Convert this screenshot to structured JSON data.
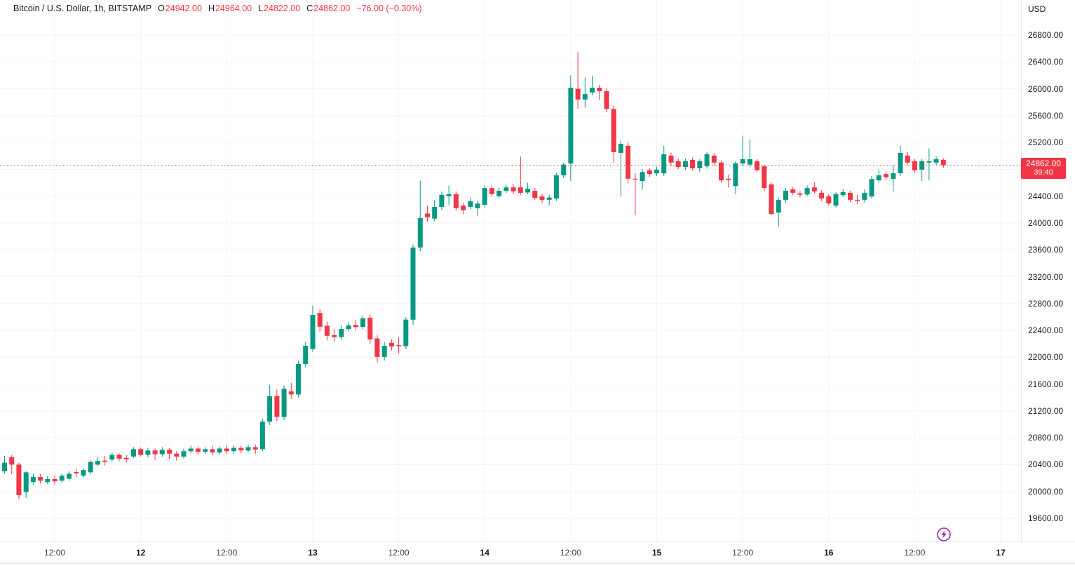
{
  "header": {
    "symbol_title": "Bitcoin / U.S. Dollar, 1h, BITSTAMP",
    "ohlc": {
      "o_label": "O",
      "o": "24942.00",
      "h_label": "H",
      "h": "24964.00",
      "l_label": "L",
      "l": "24822.00",
      "c_label": "C",
      "c": "24862.00",
      "change": "−76.00 (−0.30%)"
    }
  },
  "price_axis_unit": "USD",
  "colors": {
    "up": "#089981",
    "down": "#f23645",
    "grid": "#f0f3fa",
    "text": "#131722",
    "price_label_bg": "#f23645",
    "lightning_purple": "#9c27b0"
  },
  "chart_data": {
    "type": "candlestick",
    "title": "Bitcoin / U.S. Dollar",
    "interval": "1h",
    "exchange": "BITSTAMP",
    "currency": "USD",
    "last_bar": {
      "open": 24942,
      "high": 24964,
      "low": 24822,
      "close": 24862,
      "change": "−76.00 (−0.30%)"
    },
    "price_line": {
      "price": 24862,
      "label": "24862.00",
      "countdown": "39:40"
    },
    "y_ticks": [
      26800,
      26400,
      26000,
      25600,
      25200,
      24400,
      24000,
      23600,
      23200,
      22800,
      22400,
      22000,
      21600,
      21200,
      20800,
      20400,
      20000,
      19600
    ],
    "grid_prices": [
      26800,
      26400,
      26000,
      25600,
      25200,
      24800,
      24400,
      24000,
      23600,
      23200,
      22800,
      22400,
      22000,
      21600,
      21200,
      20800,
      20400,
      20000,
      19600
    ],
    "ylim": [
      19220,
      27330
    ],
    "x_ticks": [
      {
        "label": "12:00",
        "hour": 7,
        "major": false
      },
      {
        "label": "12",
        "hour": 19,
        "major": true
      },
      {
        "label": "12:00",
        "hour": 31,
        "major": false
      },
      {
        "label": "13",
        "hour": 43,
        "major": true
      },
      {
        "label": "12:00",
        "hour": 55,
        "major": false
      },
      {
        "label": "14",
        "hour": 67,
        "major": true
      },
      {
        "label": "12:00",
        "hour": 79,
        "major": false
      },
      {
        "label": "15",
        "hour": 91,
        "major": true
      },
      {
        "label": "12:00",
        "hour": 103,
        "major": false
      },
      {
        "label": "16",
        "hour": 115,
        "major": true
      },
      {
        "label": "12:00",
        "hour": 127,
        "major": false
      },
      {
        "label": "17",
        "hour": 139,
        "major": true
      }
    ],
    "candles_format": [
      "open",
      "high",
      "low",
      "close"
    ],
    "candles": [
      [
        20300,
        20530,
        20270,
        20430
      ],
      [
        20510,
        20545,
        20260,
        20400
      ],
      [
        20400,
        20430,
        19885,
        19945
      ],
      [
        19990,
        20300,
        19905,
        20285
      ],
      [
        20140,
        20260,
        20100,
        20215
      ],
      [
        20215,
        20260,
        20120,
        20160
      ],
      [
        20140,
        20230,
        20110,
        20185
      ],
      [
        20185,
        20240,
        20105,
        20150
      ],
      [
        20160,
        20270,
        20130,
        20235
      ],
      [
        20190,
        20300,
        20160,
        20265
      ],
      [
        20290,
        20345,
        20210,
        20270
      ],
      [
        20235,
        20350,
        20200,
        20320
      ],
      [
        20285,
        20470,
        20260,
        20440
      ],
      [
        20400,
        20520,
        20380,
        20455
      ],
      [
        20460,
        20530,
        20390,
        20440
      ],
      [
        20475,
        20580,
        20440,
        20545
      ],
      [
        20545,
        20565,
        20450,
        20490
      ],
      [
        20500,
        20540,
        20430,
        20480
      ],
      [
        20520,
        20660,
        20500,
        20630
      ],
      [
        20630,
        20655,
        20520,
        20545
      ],
      [
        20545,
        20650,
        20510,
        20610
      ],
      [
        20610,
        20640,
        20470,
        20555
      ],
      [
        20555,
        20660,
        20520,
        20620
      ],
      [
        20620,
        20650,
        20480,
        20565
      ],
      [
        20565,
        20600,
        20460,
        20520
      ],
      [
        20520,
        20640,
        20490,
        20600
      ],
      [
        20600,
        20680,
        20570,
        20640
      ],
      [
        20640,
        20670,
        20550,
        20590
      ],
      [
        20590,
        20660,
        20560,
        20630
      ],
      [
        20630,
        20680,
        20540,
        20580
      ],
      [
        20580,
        20670,
        20550,
        20640
      ],
      [
        20640,
        20690,
        20560,
        20600
      ],
      [
        20600,
        20690,
        20565,
        20650
      ],
      [
        20650,
        20680,
        20570,
        20610
      ],
      [
        20610,
        20700,
        20580,
        20660
      ],
      [
        20660,
        20700,
        20560,
        20625
      ],
      [
        20630,
        21080,
        20600,
        21040
      ],
      [
        21040,
        21590,
        20990,
        21420
      ],
      [
        21420,
        21520,
        21050,
        21110
      ],
      [
        21110,
        21580,
        21060,
        21530
      ],
      [
        21490,
        21620,
        21380,
        21445
      ],
      [
        21445,
        21950,
        21400,
        21900
      ],
      [
        21900,
        22230,
        21850,
        22170
      ],
      [
        22120,
        22770,
        22080,
        22630
      ],
      [
        22660,
        22720,
        22380,
        22455
      ],
      [
        22470,
        22530,
        22250,
        22320
      ],
      [
        22330,
        22420,
        22230,
        22300
      ],
      [
        22300,
        22470,
        22260,
        22420
      ],
      [
        22420,
        22520,
        22390,
        22475
      ],
      [
        22480,
        22560,
        22400,
        22450
      ],
      [
        22450,
        22620,
        22420,
        22580
      ],
      [
        22590,
        22640,
        22200,
        22265
      ],
      [
        22280,
        22330,
        21920,
        22005
      ],
      [
        22005,
        22230,
        21950,
        22170
      ],
      [
        22215,
        22270,
        22100,
        22160
      ],
      [
        22180,
        22300,
        22060,
        22165
      ],
      [
        22165,
        22600,
        22120,
        22560
      ],
      [
        22560,
        23680,
        22485,
        23635
      ],
      [
        23635,
        24630,
        23580,
        24075
      ],
      [
        24140,
        24260,
        24020,
        24085
      ],
      [
        24065,
        24345,
        24030,
        24240
      ],
      [
        24240,
        24470,
        24190,
        24420
      ],
      [
        24400,
        24555,
        24260,
        24430
      ],
      [
        24430,
        24470,
        24180,
        24220
      ],
      [
        24260,
        24300,
        24130,
        24190
      ],
      [
        24240,
        24370,
        24200,
        24325
      ],
      [
        24220,
        24330,
        24105,
        24290
      ],
      [
        24270,
        24560,
        24230,
        24520
      ],
      [
        24520,
        24560,
        24390,
        24430
      ],
      [
        24400,
        24530,
        24370,
        24480
      ],
      [
        24480,
        24570,
        24450,
        24530
      ],
      [
        24530,
        24580,
        24430,
        24470
      ],
      [
        24530,
        24990,
        24420,
        24450
      ],
      [
        24455,
        24600,
        24430,
        24510
      ],
      [
        24480,
        24520,
        24340,
        24375
      ],
      [
        24395,
        24440,
        24300,
        24345
      ],
      [
        24345,
        24420,
        24260,
        24380
      ],
      [
        24365,
        24750,
        24330,
        24710
      ],
      [
        24710,
        24900,
        24670,
        24870
      ],
      [
        24885,
        26200,
        24625,
        26015
      ],
      [
        26000,
        26545,
        25700,
        25840
      ],
      [
        25840,
        26170,
        25720,
        25920
      ],
      [
        25945,
        26195,
        25900,
        26015
      ],
      [
        26015,
        26060,
        25830,
        25965
      ],
      [
        25965,
        26010,
        25650,
        25700
      ],
      [
        25700,
        25750,
        24900,
        25055
      ],
      [
        25045,
        25230,
        24395,
        25180
      ],
      [
        25150,
        25200,
        24590,
        24660
      ],
      [
        24660,
        24740,
        24115,
        24650
      ],
      [
        24625,
        24800,
        24500,
        24760
      ],
      [
        24785,
        24820,
        24690,
        24730
      ],
      [
        24740,
        24840,
        24700,
        24795
      ],
      [
        24740,
        25150,
        24700,
        25025
      ],
      [
        25005,
        25050,
        24850,
        24900
      ],
      [
        24920,
        24960,
        24800,
        24835
      ],
      [
        24835,
        24960,
        24790,
        24920
      ],
      [
        24940,
        24980,
        24780,
        24815
      ],
      [
        24815,
        24950,
        24760,
        24920
      ],
      [
        24845,
        25060,
        24810,
        25025
      ],
      [
        25005,
        25040,
        24860,
        24900
      ],
      [
        24900,
        24930,
        24600,
        24635
      ],
      [
        24660,
        24720,
        24530,
        24640
      ],
      [
        24550,
        24920,
        24430,
        24890
      ],
      [
        24885,
        25300,
        24850,
        24950
      ],
      [
        24870,
        25245,
        24830,
        24950
      ],
      [
        24920,
        24950,
        24750,
        24785
      ],
      [
        24845,
        24870,
        24480,
        24520
      ],
      [
        24575,
        24600,
        24115,
        24135
      ],
      [
        24155,
        24380,
        23945,
        24345
      ],
      [
        24345,
        24520,
        24300,
        24480
      ],
      [
        24500,
        24540,
        24410,
        24450
      ],
      [
        24440,
        24480,
        24380,
        24420
      ],
      [
        24425,
        24560,
        24400,
        24520
      ],
      [
        24530,
        24605,
        24440,
        24470
      ],
      [
        24450,
        24490,
        24330,
        24365
      ],
      [
        24395,
        24430,
        24260,
        24290
      ],
      [
        24260,
        24460,
        24230,
        24430
      ],
      [
        24415,
        24510,
        24390,
        24460
      ],
      [
        24450,
        24480,
        24310,
        24345
      ],
      [
        24345,
        24420,
        24280,
        24330
      ],
      [
        24345,
        24500,
        24310,
        24450
      ],
      [
        24395,
        24700,
        24360,
        24655
      ],
      [
        24635,
        24795,
        24600,
        24710
      ],
      [
        24730,
        24770,
        24640,
        24680
      ],
      [
        24655,
        24865,
        24470,
        24740
      ],
      [
        24740,
        25150,
        24700,
        25045
      ],
      [
        25005,
        25060,
        24860,
        24900
      ],
      [
        24920,
        24950,
        24750,
        24785
      ],
      [
        24795,
        24950,
        24625,
        24920
      ],
      [
        24900,
        25110,
        24635,
        24920
      ],
      [
        24900,
        24990,
        24860,
        24950
      ],
      [
        24942,
        24964,
        24822,
        24862
      ]
    ]
  }
}
